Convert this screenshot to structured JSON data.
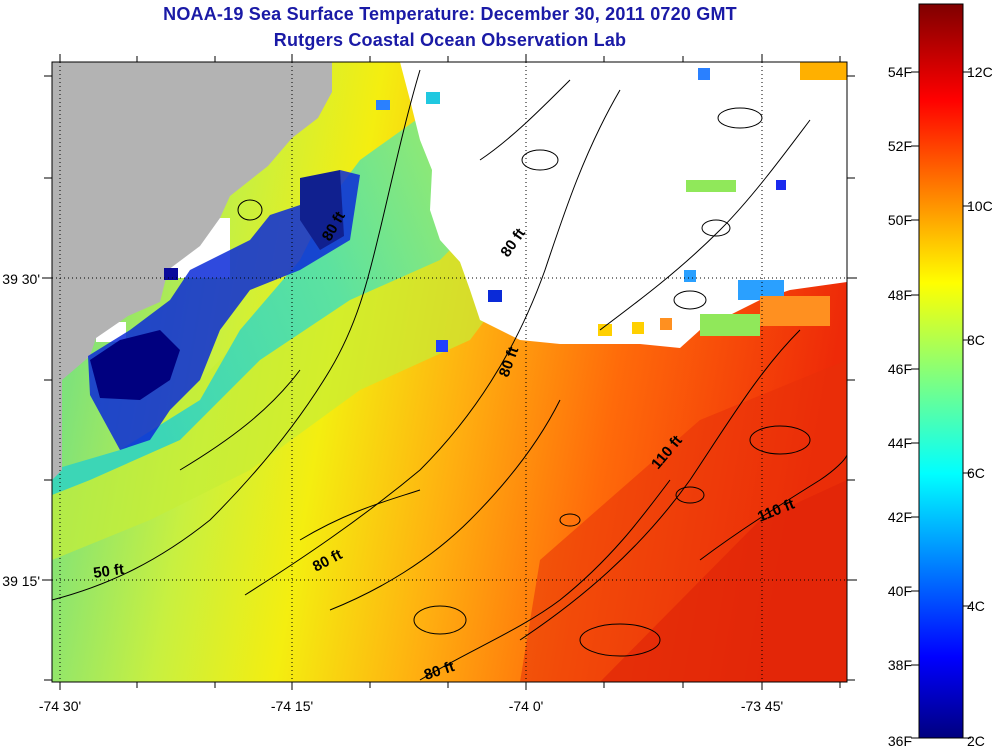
{
  "header": {
    "title": "NOAA-19 Sea Surface Temperature:  December 30, 2011 0720 GMT",
    "subtitle": "Rutgers Coastal Ocean Observation Lab"
  },
  "axes": {
    "lon_ticks": [
      "-74 30'",
      "-74 15'",
      "-74 0'",
      "-73 45'"
    ],
    "lat_ticks": [
      "39 30'",
      "39 15'"
    ]
  },
  "contours": [
    "50 ft",
    "80 ft",
    "80 ft",
    "80 ft",
    "80 ft",
    "80 ft",
    "110 ft",
    "110 ft"
  ],
  "colorbar": {
    "fahrenheit": [
      "54F",
      "52F",
      "50F",
      "48F",
      "46F",
      "44F",
      "42F",
      "40F",
      "38F",
      "36F"
    ],
    "celsius": [
      "12C",
      "10C",
      "8C",
      "6C",
      "4C",
      "2C"
    ]
  },
  "colors": {
    "land": "#b3b3b3",
    "no_data": "#ffffff",
    "title": "#1a1aa6",
    "scale_low": "#00007f",
    "scale_high": "#7f0000"
  }
}
